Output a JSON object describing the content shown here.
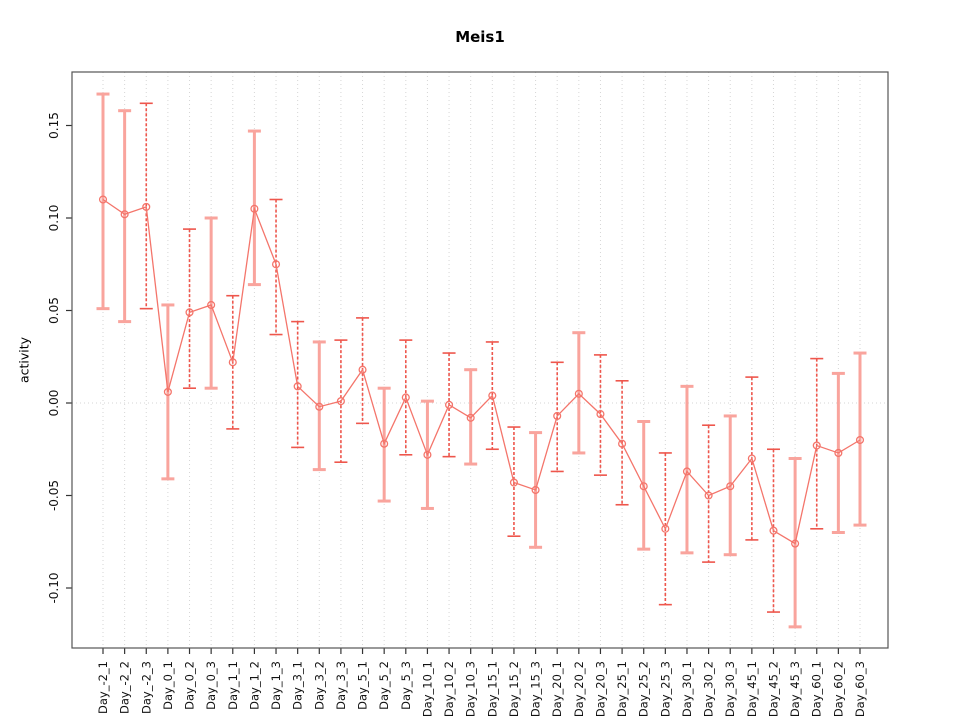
{
  "figure": {
    "title": "Meis1",
    "y_axis_label": "activity"
  },
  "chart_data": {
    "type": "line",
    "title": "Meis1",
    "xlabel": "",
    "ylabel": "activity",
    "legend": "none",
    "marker": "open-circle",
    "grid": {
      "vertical": "dotted line at every category",
      "horizontal": "dotted line at y=0 only"
    },
    "ylim": [
      -0.132,
      0.179
    ],
    "ytick_labels": [
      "0.15",
      "0.10",
      "0.05",
      "0.00",
      "-0.05",
      "-0.10"
    ],
    "ytick_values": [
      0.15,
      0.1,
      0.05,
      0.0,
      -0.05,
      -0.1
    ],
    "categories": [
      "Day_-2_1",
      "Day_-2_2",
      "Day_-2_3",
      "Day_0_1",
      "Day_0_2",
      "Day_0_3",
      "Day_1_1",
      "Day_1_2",
      "Day_1_3",
      "Day_3_1",
      "Day_3_2",
      "Day_3_3",
      "Day_5_1",
      "Day_5_2",
      "Day_5_3",
      "Day_10_1",
      "Day_10_2",
      "Day_10_3",
      "Day_15_1",
      "Day_15_2",
      "Day_15_3",
      "Day_20_1",
      "Day_20_2",
      "Day_20_3",
      "Day_25_1",
      "Day_25_2",
      "Day_25_3",
      "Day_30_1",
      "Day_30_2",
      "Day_30_3",
      "Day_45_1",
      "Day_45_2",
      "Day_45_3",
      "Day_60_1",
      "Day_60_2",
      "Day_60_3"
    ],
    "series": [
      {
        "name": "Meis1 activity",
        "values": [
          0.11,
          0.102,
          0.106,
          0.006,
          0.049,
          0.053,
          0.022,
          0.105,
          0.075,
          0.009,
          -0.002,
          0.001,
          0.018,
          -0.022,
          0.003,
          -0.028,
          -0.001,
          -0.008,
          0.004,
          -0.043,
          -0.047,
          -0.007,
          0.005,
          -0.006,
          -0.022,
          -0.045,
          -0.068,
          -0.037,
          -0.05,
          -0.045,
          -0.03,
          -0.069,
          -0.076,
          -0.023,
          -0.027,
          -0.02
        ],
        "error_high": [
          0.167,
          0.158,
          0.162,
          0.053,
          0.094,
          0.1,
          0.058,
          0.147,
          0.11,
          0.044,
          0.033,
          0.034,
          0.046,
          0.008,
          0.034,
          0.001,
          0.027,
          0.018,
          0.033,
          -0.013,
          -0.016,
          0.022,
          0.038,
          0.026,
          0.012,
          -0.01,
          -0.027,
          0.009,
          -0.012,
          -0.007,
          0.014,
          -0.025,
          -0.03,
          0.024,
          0.016,
          0.027
        ],
        "error_low": [
          0.051,
          0.044,
          0.051,
          -0.041,
          0.008,
          0.008,
          -0.014,
          0.064,
          0.037,
          -0.024,
          -0.036,
          -0.032,
          -0.011,
          -0.053,
          -0.028,
          -0.057,
          -0.029,
          -0.033,
          -0.025,
          -0.072,
          -0.078,
          -0.037,
          -0.027,
          -0.039,
          -0.055,
          -0.079,
          -0.109,
          -0.081,
          -0.086,
          -0.082,
          -0.074,
          -0.113,
          -0.121,
          -0.068,
          -0.07,
          -0.066
        ]
      }
    ],
    "errorbar_styles": [
      "solid",
      "solid",
      "dashed",
      "solid",
      "dashed",
      "solid",
      "dashed",
      "solid",
      "dashed",
      "dashed",
      "solid",
      "dashed",
      "dashed",
      "solid",
      "dashed",
      "solid",
      "dashed",
      "solid",
      "dashed",
      "dashed",
      "solid",
      "dashed",
      "solid",
      "dashed",
      "dashed",
      "solid",
      "dashed",
      "solid",
      "dashed",
      "solid",
      "dashed",
      "dashed",
      "solid",
      "dashed",
      "solid",
      "solid"
    ],
    "colors": {
      "series": "#f4756b",
      "errorbar_solid": "#f9a49d",
      "errorbar_dashed": "#ee564c",
      "gridline": "#d6d6d6",
      "axis_frame": "#555555",
      "text": "#111111"
    }
  }
}
